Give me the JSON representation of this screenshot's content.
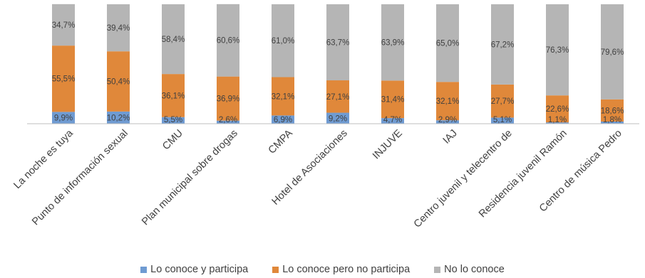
{
  "chart_data": {
    "type": "bar",
    "stacked": true,
    "normalized": true,
    "categories": [
      "La noche es tuya",
      "Punto de información sexual",
      "CMU",
      "Plan municipal sobre drogas",
      "CMPA",
      "Hotel de Asociaciones",
      "INJUVE",
      "IAJ",
      "Centro juvenil y telecentro de",
      "Residencia juvenil Ramón",
      "Centro de música Pedro"
    ],
    "series": [
      {
        "name": "Lo conoce y participa",
        "color": "#6f9bd2",
        "values": [
          9.9,
          10.2,
          5.5,
          2.6,
          6.9,
          9.2,
          4.7,
          2.9,
          5.1,
          1.1,
          1.8
        ],
        "labels": [
          "9,9%",
          "10,2%",
          "5,5%",
          "2,6%",
          "6,9%",
          "9,2%",
          "4,7%",
          "2,9%",
          "5,1%",
          "1,1%",
          "1,8%"
        ]
      },
      {
        "name": "Lo conoce pero no participa",
        "color": "#e0883a",
        "values": [
          55.5,
          50.4,
          36.1,
          36.9,
          32.1,
          27.1,
          31.4,
          32.1,
          27.7,
          22.6,
          18.6
        ],
        "labels": [
          "55,5%",
          "50,4%",
          "36,1%",
          "36,9%",
          "32,1%",
          "27,1%",
          "31,4%",
          "32,1%",
          "27,7%",
          "22,6%",
          "18,6%"
        ]
      },
      {
        "name": "No lo conoce",
        "color": "#b5b5b5",
        "values": [
          34.7,
          39.4,
          58.4,
          60.6,
          61.0,
          63.7,
          63.9,
          65.0,
          67.2,
          76.3,
          79.6
        ],
        "labels": [
          "34,7%",
          "39,4%",
          "58,4%",
          "60,6%",
          "61,0%",
          "63,7%",
          "63,9%",
          "65,0%",
          "67,2%",
          "76,3%",
          "79,6%"
        ]
      }
    ],
    "ylim": [
      0,
      100
    ],
    "grid": false,
    "legend_position": "bottom"
  }
}
